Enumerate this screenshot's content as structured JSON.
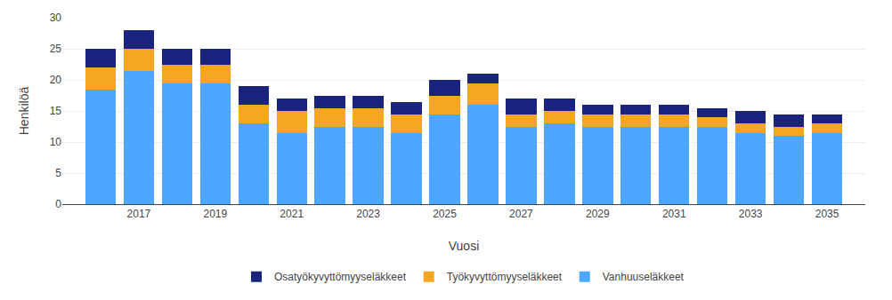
{
  "chart_data": {
    "type": "bar",
    "stacked": true,
    "x": [
      2016,
      2017,
      2018,
      2019,
      2020,
      2021,
      2022,
      2023,
      2024,
      2025,
      2026,
      2027,
      2028,
      2029,
      2030,
      2031,
      2032,
      2033,
      2034,
      2035
    ],
    "series": [
      {
        "name": "Vanhuuseläkkeet",
        "color": "#4DA6FF",
        "values": [
          18.5,
          21.5,
          19.5,
          19.5,
          13.0,
          11.5,
          12.5,
          12.5,
          11.5,
          14.5,
          16.0,
          12.5,
          13.0,
          12.5,
          12.5,
          12.5,
          12.5,
          11.5,
          11.0,
          11.5
        ]
      },
      {
        "name": "Työkyvyttömyyseläkkeet",
        "color": "#F5A623",
        "values": [
          3.5,
          3.5,
          3.0,
          3.0,
          3.0,
          3.5,
          3.0,
          3.0,
          3.0,
          3.0,
          3.5,
          2.0,
          2.0,
          2.0,
          2.0,
          2.0,
          1.5,
          1.5,
          1.5,
          1.5
        ]
      },
      {
        "name": "Osatyökyvyttömyyseläkkeet",
        "color": "#1A237E",
        "values": [
          3.0,
          3.0,
          2.5,
          2.5,
          3.0,
          2.0,
          2.0,
          2.0,
          2.0,
          2.5,
          1.5,
          2.5,
          2.0,
          1.5,
          1.5,
          1.5,
          1.5,
          2.0,
          2.0,
          1.5
        ]
      }
    ],
    "xlabel": "Vuosi",
    "ylabel": "Henkilöä",
    "xlim": [
      2015,
      2036
    ],
    "xticks": [
      2017,
      2019,
      2021,
      2023,
      2025,
      2027,
      2029,
      2031,
      2033,
      2035
    ],
    "ylim": [
      0,
      30
    ],
    "yticks": [
      0,
      5,
      10,
      15,
      20,
      25,
      30
    ],
    "grid": true,
    "legend": "bottom"
  }
}
